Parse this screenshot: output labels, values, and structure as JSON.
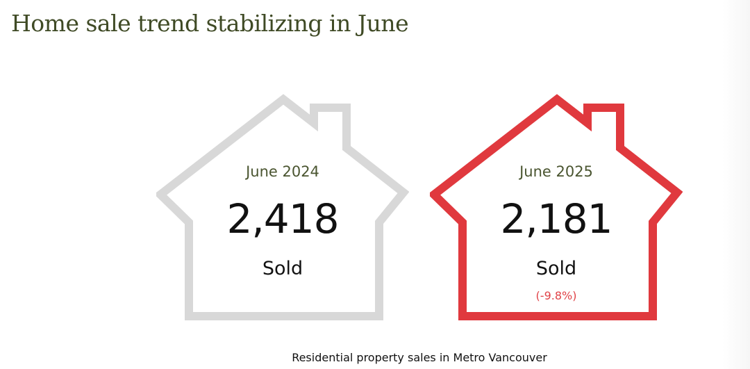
{
  "title": "Home sale trend stabilizing in June",
  "caption": "Residential property sales in Metro Vancouver",
  "colors": {
    "previous_house": "#d8d8d8",
    "current_house": "#e0393e",
    "change_text": "#e04247"
  },
  "chart_data": {
    "type": "pictogram",
    "title": "Home sale trend stabilizing in June",
    "caption": "Residential property sales in Metro Vancouver",
    "unit": "Sold",
    "items": [
      {
        "period": "June 2024",
        "value": 2418,
        "value_label": "2,418",
        "unit": "Sold",
        "change_label": "",
        "color": "#d8d8d8"
      },
      {
        "period": "June 2025",
        "value": 2181,
        "value_label": "2,181",
        "unit": "Sold",
        "change_label": "(-9.8%)",
        "change_percent": -9.8,
        "color": "#e0393e"
      }
    ]
  }
}
